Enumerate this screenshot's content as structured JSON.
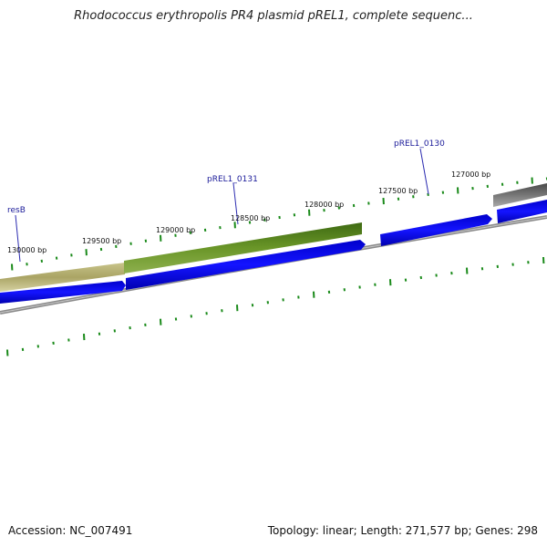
{
  "title": "Rhodococcus erythropolis PR4 plasmid pREL1, complete sequenc...",
  "footer": {
    "accession": "Accession: NC_007491",
    "summary": "Topology: linear; Length: 271,577 bp; Genes: 298"
  },
  "colors": {
    "backbone": "#888888",
    "forward_gene": "#0000ee",
    "tick": "#1a8a1a",
    "label_line": "#2a2ab0",
    "feature_olive": "#a6a060",
    "feature_green": "#5a8a1e",
    "feature_gray": "#6a6a6a"
  },
  "position_labels": [
    "130000 bp",
    "129500 bp",
    "129000 bp",
    "128500 bp",
    "128000 bp",
    "127500 bp",
    "127000 bp"
  ],
  "gene_labels": [
    "resB",
    "pREL1_0131",
    "pREL1_0130"
  ]
}
